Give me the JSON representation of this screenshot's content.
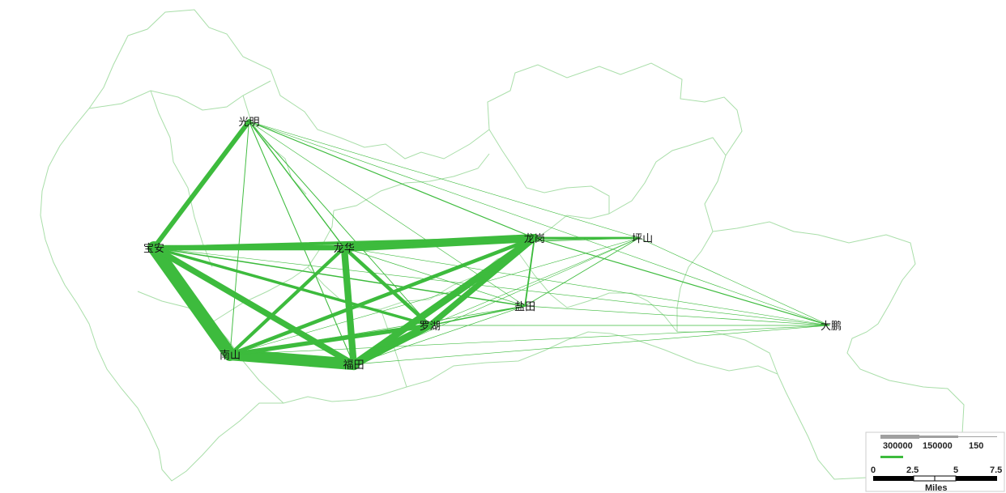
{
  "map": {
    "boundary_color": "#9ad89a",
    "flow_color": "#3dbb3d",
    "districts": [
      {
        "id": "guangming",
        "label": "光明",
        "lon": 113.94,
        "lat": 22.77
      },
      {
        "id": "baoan",
        "label": "宝安",
        "lon": 113.84,
        "lat": 22.64
      },
      {
        "id": "longhua",
        "label": "龙华",
        "lon": 114.04,
        "lat": 22.64
      },
      {
        "id": "longgang",
        "label": "龙岗",
        "lon": 114.24,
        "lat": 22.65
      },
      {
        "id": "pingshan",
        "label": "坪山",
        "lon": 114.35,
        "lat": 22.65
      },
      {
        "id": "yantian",
        "label": "盐田",
        "lon": 114.23,
        "lat": 22.58
      },
      {
        "id": "luohu",
        "label": "罗湖",
        "lon": 114.13,
        "lat": 22.56
      },
      {
        "id": "nanshan",
        "label": "南山",
        "lon": 113.92,
        "lat": 22.53
      },
      {
        "id": "futian",
        "label": "福田",
        "lon": 114.05,
        "lat": 22.52
      },
      {
        "id": "dapeng",
        "label": "大鹏",
        "lon": 114.55,
        "lat": 22.56
      }
    ],
    "flows": [
      {
        "from": "baoan",
        "to": "nanshan",
        "value": 300000
      },
      {
        "from": "nanshan",
        "to": "futian",
        "value": 270000
      },
      {
        "from": "longhua",
        "to": "longgang",
        "value": 190000
      },
      {
        "from": "futian",
        "to": "luohu",
        "value": 175000
      },
      {
        "from": "futian",
        "to": "longgang",
        "value": 160000
      },
      {
        "from": "longhua",
        "to": "futian",
        "value": 155000
      },
      {
        "from": "baoan",
        "to": "futian",
        "value": 140000
      },
      {
        "from": "luohu",
        "to": "longgang",
        "value": 135000
      },
      {
        "from": "baoan",
        "to": "longhua",
        "value": 120000
      },
      {
        "from": "guangming",
        "to": "baoan",
        "value": 110000
      },
      {
        "from": "nanshan",
        "to": "luohu",
        "value": 100000
      },
      {
        "from": "nanshan",
        "to": "longgang",
        "value": 85000
      },
      {
        "from": "longhua",
        "to": "luohu",
        "value": 85000
      },
      {
        "from": "nanshan",
        "to": "longhua",
        "value": 80000
      },
      {
        "from": "baoan",
        "to": "longgang",
        "value": 75000
      },
      {
        "from": "baoan",
        "to": "luohu",
        "value": 65000
      },
      {
        "from": "longhua",
        "to": "nanshan",
        "value": 60000
      },
      {
        "from": "longgang",
        "to": "pingshan",
        "value": 50000
      },
      {
        "from": "longgang",
        "to": "yantian",
        "value": 35000
      },
      {
        "from": "luohu",
        "to": "yantian",
        "value": 30000
      },
      {
        "from": "baoan",
        "to": "yantian",
        "value": 28000
      },
      {
        "from": "guangming",
        "to": "longhua",
        "value": 25000
      },
      {
        "from": "guangming",
        "to": "longgang",
        "value": 22000
      },
      {
        "from": "longgang",
        "to": "dapeng",
        "value": 22000
      },
      {
        "from": "guangming",
        "to": "futian",
        "value": 20000
      },
      {
        "from": "guangming",
        "to": "luohu",
        "value": 18000
      },
      {
        "from": "guangming",
        "to": "nanshan",
        "value": 18000
      },
      {
        "from": "pingshan",
        "to": "yantian",
        "value": 16000
      },
      {
        "from": "baoan",
        "to": "pingshan",
        "value": 15000
      },
      {
        "from": "longhua",
        "to": "pingshan",
        "value": 15000
      },
      {
        "from": "luohu",
        "to": "dapeng",
        "value": 15000
      },
      {
        "from": "futian",
        "to": "yantian",
        "value": 14000
      },
      {
        "from": "nanshan",
        "to": "yantian",
        "value": 14000
      },
      {
        "from": "longhua",
        "to": "yantian",
        "value": 13000
      },
      {
        "from": "yantian",
        "to": "dapeng",
        "value": 12000
      },
      {
        "from": "pingshan",
        "to": "dapeng",
        "value": 12000
      },
      {
        "from": "futian",
        "to": "dapeng",
        "value": 12000
      },
      {
        "from": "nanshan",
        "to": "dapeng",
        "value": 10000
      },
      {
        "from": "luohu",
        "to": "pingshan",
        "value": 10000
      },
      {
        "from": "futian",
        "to": "pingshan",
        "value": 10000
      },
      {
        "from": "nanshan",
        "to": "pingshan",
        "value": 8000
      },
      {
        "from": "longhua",
        "to": "dapeng",
        "value": 8000
      },
      {
        "from": "guangming",
        "to": "pingshan",
        "value": 6000
      },
      {
        "from": "guangming",
        "to": "yantian",
        "value": 6000
      },
      {
        "from": "baoan",
        "to": "dapeng",
        "value": 5000
      },
      {
        "from": "guangming",
        "to": "dapeng",
        "value": 2000
      }
    ]
  },
  "legend": {
    "flow_labels": [
      "300000",
      "150000",
      "150"
    ],
    "scale_ticks": [
      "0",
      "2.5",
      "5",
      "7.5"
    ],
    "scale_unit": "Miles"
  }
}
